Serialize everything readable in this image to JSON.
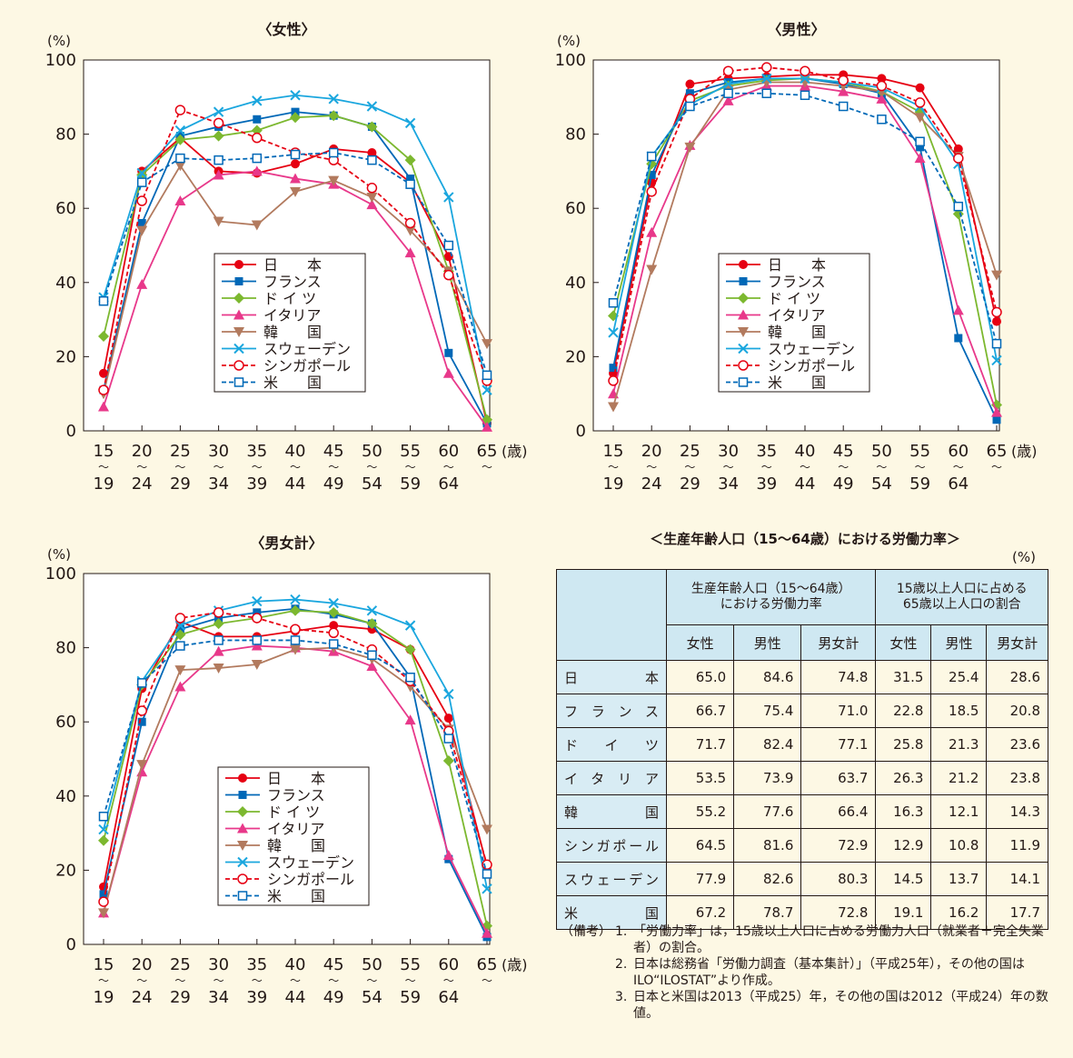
{
  "labels": {
    "percent_unit": "(%)",
    "age_unit": "(歳)",
    "tilde": "〜",
    "table_unit": "(%)"
  },
  "x_categories": [
    [
      "15",
      "19"
    ],
    [
      "20",
      "24"
    ],
    [
      "25",
      "29"
    ],
    [
      "30",
      "34"
    ],
    [
      "35",
      "39"
    ],
    [
      "40",
      "44"
    ],
    [
      "45",
      "49"
    ],
    [
      "50",
      "54"
    ],
    [
      "55",
      "59"
    ],
    [
      "60",
      "64"
    ],
    [
      "65",
      ""
    ]
  ],
  "y_ticks": [
    0,
    20,
    40,
    60,
    80,
    100
  ],
  "legend": [
    {
      "name": "日　　本",
      "color": "#e60012",
      "marker": "circle",
      "dash": false
    },
    {
      "name": "フランス",
      "color": "#0068b7",
      "marker": "square",
      "dash": false
    },
    {
      "name": "ド イ ツ",
      "color": "#7cb82f",
      "marker": "diamond",
      "dash": false
    },
    {
      "name": "イタリア",
      "color": "#e8388a",
      "marker": "triangle",
      "dash": false
    },
    {
      "name": "韓　　国",
      "color": "#b27a5e",
      "marker": "triangle-down",
      "dash": false
    },
    {
      "name": "スウェーデン",
      "color": "#1aa6de",
      "marker": "x",
      "dash": false
    },
    {
      "name": "シンガポール",
      "color": "#e60012",
      "marker": "circle-open",
      "dash": true
    },
    {
      "name": "米　　国",
      "color": "#0068b7",
      "marker": "square-open",
      "dash": true
    }
  ],
  "chart_data": [
    {
      "type": "line",
      "title": "〈女性〉",
      "ylim": [
        0,
        100
      ],
      "series": [
        {
          "name": "日　　本",
          "values": [
            15.5,
            70,
            79,
            70,
            69.5,
            72,
            76,
            75,
            67,
            47,
            2
          ]
        },
        {
          "name": "フランス",
          "values": [
            11,
            56,
            79.5,
            82,
            84,
            86,
            85,
            82,
            68,
            21,
            2
          ]
        },
        {
          "name": "ド イ ツ",
          "values": [
            25.5,
            69,
            78.5,
            79.5,
            81,
            84.5,
            85,
            82,
            73,
            43,
            3
          ]
        },
        {
          "name": "イタリア",
          "values": [
            6.5,
            39.5,
            62,
            69,
            70,
            68,
            66.5,
            61,
            48,
            15.5,
            1
          ]
        },
        {
          "name": "韓　　国",
          "values": [
            10,
            54,
            71.5,
            56.5,
            55.5,
            64.5,
            67.5,
            63,
            54,
            43,
            23.5
          ]
        },
        {
          "name": "スウェーデン",
          "values": [
            36,
            69.5,
            81,
            86,
            89,
            90.5,
            89.5,
            87.5,
            83,
            63,
            11
          ]
        },
        {
          "name": "シンガポール",
          "values": [
            11,
            62,
            86.5,
            83,
            79,
            75,
            73,
            65.5,
            56,
            42,
            13.5
          ]
        },
        {
          "name": "米　　国",
          "values": [
            35,
            67,
            73.5,
            73,
            73.5,
            74.5,
            75,
            73,
            66.5,
            50,
            15
          ]
        }
      ]
    },
    {
      "type": "line",
      "title": "〈男性〉",
      "ylim": [
        0,
        100
      ],
      "series": [
        {
          "name": "日　　本",
          "values": [
            15.5,
            67,
            93.5,
            95,
            95.5,
            96,
            96,
            95,
            92.5,
            76,
            29.5
          ]
        },
        {
          "name": "フランス",
          "values": [
            17,
            69,
            91,
            94,
            95,
            95,
            93.5,
            91,
            76.5,
            25,
            3
          ]
        },
        {
          "name": "ド イ ツ",
          "values": [
            31,
            72,
            89,
            93,
            94.5,
            95,
            94,
            91.5,
            86,
            58.5,
            7
          ]
        },
        {
          "name": "イタリア",
          "values": [
            10,
            53.5,
            77,
            89,
            93,
            93,
            91.5,
            89.5,
            73.5,
            32.5,
            5
          ]
        },
        {
          "name": "韓　　国",
          "values": [
            6.5,
            43.5,
            76.5,
            92,
            94,
            94,
            93,
            91.5,
            84.5,
            74,
            42
          ]
        },
        {
          "name": "スウェーデン",
          "values": [
            26.5,
            74,
            88,
            93.5,
            95,
            95,
            94,
            92.5,
            87.5,
            72,
            19
          ]
        },
        {
          "name": "シンガポール",
          "values": [
            13.5,
            64.5,
            89.5,
            97,
            98,
            97,
            94.5,
            93,
            88.5,
            73.5,
            32
          ]
        },
        {
          "name": "米　　国",
          "values": [
            34.5,
            74,
            87.5,
            91,
            91,
            90.5,
            87.5,
            84,
            78,
            60.5,
            23.5
          ]
        }
      ]
    },
    {
      "type": "line",
      "title": "〈男女計〉",
      "ylim": [
        0,
        100
      ],
      "series": [
        {
          "name": "日　　本",
          "values": [
            15.5,
            69,
            87,
            83,
            83,
            84.5,
            86,
            85,
            79.5,
            61,
            21
          ]
        },
        {
          "name": "フランス",
          "values": [
            13.5,
            60,
            85,
            88,
            89.5,
            90.5,
            89,
            86.5,
            72,
            23,
            2
          ]
        },
        {
          "name": "ド イ ツ",
          "values": [
            28,
            70,
            83.5,
            86.5,
            88,
            90,
            89.5,
            86.5,
            79.5,
            49.5,
            5
          ]
        },
        {
          "name": "イタリア",
          "values": [
            8.5,
            46.5,
            69.5,
            79,
            80.5,
            80,
            79,
            75,
            60.5,
            24,
            3
          ]
        },
        {
          "name": "韓　　国",
          "values": [
            8.5,
            48.5,
            74,
            74.5,
            75.5,
            79.5,
            80,
            77,
            69.5,
            58,
            31
          ]
        },
        {
          "name": "スウェーデン",
          "values": [
            31,
            71,
            86,
            90,
            92.5,
            93,
            92,
            90,
            86,
            67.5,
            15
          ]
        },
        {
          "name": "シンガポール",
          "values": [
            11.5,
            63,
            88,
            89.5,
            88,
            85,
            84,
            79.5,
            71,
            57.5,
            21.5
          ]
        },
        {
          "name": "米　　国",
          "values": [
            34.5,
            70.5,
            80.5,
            82,
            82,
            82,
            81,
            78,
            72,
            55.5,
            19
          ]
        }
      ]
    }
  ],
  "table": {
    "title": "＜生産年齢人口（15〜64歳）における労働力率＞",
    "group1": "生産年齢人口（15〜64歳）\nにおける労働力率",
    "group2": "15歳以上人口に占める\n65歳以上人口の割合",
    "sub_headers": [
      "女性",
      "男性",
      "男女計",
      "女性",
      "男性",
      "男女計"
    ],
    "rows": [
      {
        "name": "日　　本",
        "values": [
          "65.0",
          "84.6",
          "74.8",
          "31.5",
          "25.4",
          "28.6"
        ]
      },
      {
        "name": "フランス",
        "values": [
          "66.7",
          "75.4",
          "71.0",
          "22.8",
          "18.5",
          "20.8"
        ]
      },
      {
        "name": "ドイツ",
        "values": [
          "71.7",
          "82.4",
          "77.1",
          "25.8",
          "21.3",
          "23.6"
        ]
      },
      {
        "name": "イタリア",
        "values": [
          "53.5",
          "73.9",
          "63.7",
          "26.3",
          "21.2",
          "23.8"
        ]
      },
      {
        "name": "韓国",
        "values": [
          "55.2",
          "77.6",
          "66.4",
          "16.3",
          "12.1",
          "14.3"
        ]
      },
      {
        "name": "シンガポール",
        "values": [
          "64.5",
          "81.6",
          "72.9",
          "12.9",
          "10.8",
          "11.9"
        ]
      },
      {
        "name": "スウェーデン",
        "values": [
          "77.9",
          "82.6",
          "80.3",
          "14.5",
          "13.7",
          "14.1"
        ]
      },
      {
        "name": "米国",
        "values": [
          "67.2",
          "78.7",
          "72.8",
          "19.1",
          "16.2",
          "17.7"
        ]
      }
    ]
  },
  "notes": {
    "head": "（備考）",
    "items": [
      {
        "num": "1.",
        "text": "「労働力率」は，15歳以上人口に占める労働力人口（就業者＋完全失業者）の割合。"
      },
      {
        "num": "2.",
        "text": "日本は総務省「労働力調査（基本集計）」（平成25年），その他の国はILO“ILOSTAT”より作成。"
      },
      {
        "num": "3.",
        "text": "日本と米国は2013（平成25）年，その他の国は2012（平成24）年の数値。"
      }
    ]
  }
}
